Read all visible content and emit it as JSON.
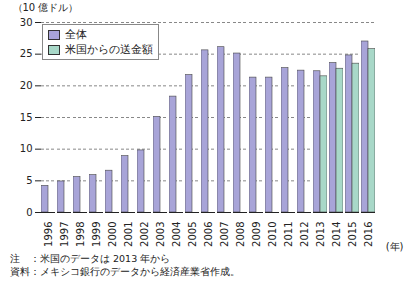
{
  "chart_data": {
    "type": "bar",
    "ylabel": "（10 億ドル）",
    "xlabel": "(年)",
    "categories": [
      1996,
      1997,
      1998,
      1999,
      2000,
      2001,
      2002,
      2003,
      2004,
      2005,
      2006,
      2007,
      2008,
      2009,
      2010,
      2011,
      2012,
      2013,
      2014,
      2015,
      2016
    ],
    "series": [
      {
        "name": "全体",
        "color": "#a8a4d8",
        "values": [
          4.2,
          4.9,
          5.6,
          5.9,
          6.6,
          8.9,
          9.8,
          15.1,
          18.3,
          21.7,
          25.6,
          26.1,
          25.1,
          21.3,
          21.3,
          22.8,
          22.4,
          22.3,
          23.6,
          24.8,
          27.0
        ]
      },
      {
        "name": "米国からの送金額",
        "color": "#a8d8c8",
        "values": [
          null,
          null,
          null,
          null,
          null,
          null,
          null,
          null,
          null,
          null,
          null,
          null,
          null,
          null,
          null,
          null,
          null,
          21.5,
          22.7,
          23.5,
          25.8
        ]
      }
    ],
    "ylim": [
      0,
      30
    ],
    "yticks": [
      0,
      5,
      10,
      15,
      20,
      25,
      30
    ],
    "grid": true,
    "legend": "top-left",
    "notes": [
      "注　：米国のデータは 2013 年から",
      "資料：メキシコ銀行のデータから経済産業省作成。"
    ]
  }
}
